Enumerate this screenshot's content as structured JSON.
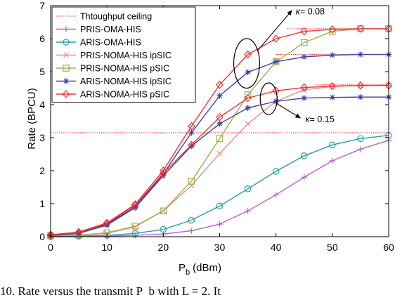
{
  "caption": "10. Rate versus the transmit P_b with L = 2. It",
  "chart_data": {
    "type": "line",
    "title": "",
    "xlabel": "P",
    "xlabel_sub": "b",
    "xlabel_unit": "(dBm)",
    "ylabel": "Rate (BPCU)",
    "xlim": [
      0,
      60
    ],
    "ylim": [
      0,
      7
    ],
    "xticks": [
      "0",
      "10",
      "20",
      "30",
      "40",
      "50",
      "60"
    ],
    "yticks": [
      "0",
      "1",
      "2",
      "3",
      "4",
      "5",
      "6",
      "7"
    ],
    "grid": false,
    "legend_position": "top-left",
    "ceiling_label": "Thtoughput ceiling",
    "ceiling_color": "#ff2a2a",
    "ceilings": [
      {
        "y": 6.3,
        "x_from": 42
      },
      {
        "y": 5.52,
        "x_from": 40
      },
      {
        "y": 4.6,
        "x_from": 47
      },
      {
        "y": 3.15,
        "x_from": 0
      }
    ],
    "x": [
      0,
      5,
      10,
      15,
      20,
      25,
      30,
      35,
      40,
      45,
      50,
      55,
      60
    ],
    "series": [
      {
        "name": "PRIS-OMA-HIS",
        "color": "#b265c4",
        "marker": "plus",
        "values": [
          0.0,
          0.0,
          0.02,
          0.04,
          0.08,
          0.18,
          0.38,
          0.78,
          1.27,
          1.8,
          2.3,
          2.65,
          2.92
        ]
      },
      {
        "name": "ARIS-OMA-HIS",
        "color": "#2a9ca8",
        "marker": "circle",
        "values": [
          0.0,
          0.02,
          0.04,
          0.1,
          0.22,
          0.5,
          0.93,
          1.45,
          1.98,
          2.45,
          2.78,
          2.97,
          3.07
        ]
      },
      {
        "name": "PRIS-NOMA-HIS ipSIC",
        "color": "#f08a8a",
        "marker": "x",
        "values": [
          0.03,
          0.05,
          0.1,
          0.3,
          0.78,
          1.55,
          2.52,
          3.42,
          4.1,
          4.45,
          4.55,
          4.58,
          4.6
        ]
      },
      {
        "name": "PRIS-NOMA-HIS pSIC",
        "color": "#9cb04a",
        "marker": "square",
        "values": [
          0.03,
          0.05,
          0.12,
          0.32,
          0.78,
          1.68,
          2.97,
          4.3,
          5.3,
          5.88,
          6.22,
          6.3,
          6.3
        ]
      },
      {
        "name": "ARIS-NOMA-HIS ipSIC",
        "color": "#4040a8",
        "marker": "star",
        "values": [
          0.05,
          0.12,
          0.38,
          0.9,
          1.9,
          3.15,
          4.27,
          4.98,
          5.3,
          5.45,
          5.5,
          5.52,
          5.52
        ]
      },
      {
        "name": "ARIS-NOMA-HIS pSIC",
        "color": "#ee3333",
        "marker": "diamond",
        "values": [
          0.06,
          0.14,
          0.42,
          0.98,
          2.0,
          3.35,
          4.6,
          5.52,
          6.0,
          6.22,
          6.28,
          6.3,
          6.3
        ]
      },
      {
        "name": "",
        "color": "#4040a8",
        "marker": "star",
        "values": [
          0.03,
          0.1,
          0.35,
          0.88,
          1.85,
          2.75,
          3.42,
          3.9,
          4.1,
          4.2,
          4.22,
          4.23,
          4.23
        ]
      },
      {
        "name": "",
        "color": "#ee3333",
        "marker": "diamond",
        "values": [
          0.04,
          0.12,
          0.4,
          0.95,
          1.92,
          2.78,
          3.62,
          4.2,
          4.42,
          4.52,
          4.56,
          4.58,
          4.58
        ]
      }
    ],
    "annotations": [
      {
        "text_pre": "κ",
        "text_post": "= 0.08",
        "ellipse": {
          "cx": 34.8,
          "cy": 5.25,
          "rx": 2.3,
          "ry": 0.75
        },
        "arrow_to": {
          "x": 42.8,
          "y": 6.85
        },
        "text_at": {
          "x": 43.5,
          "y": 6.82
        }
      },
      {
        "text_pre": "κ",
        "text_post": "= 0.15",
        "ellipse": {
          "cx": 38.7,
          "cy": 4.18,
          "rx": 1.5,
          "ry": 0.48
        },
        "arrow_to": {
          "x": 44.3,
          "y": 3.6
        },
        "text_at": {
          "x": 45.2,
          "y": 3.55
        }
      }
    ]
  }
}
